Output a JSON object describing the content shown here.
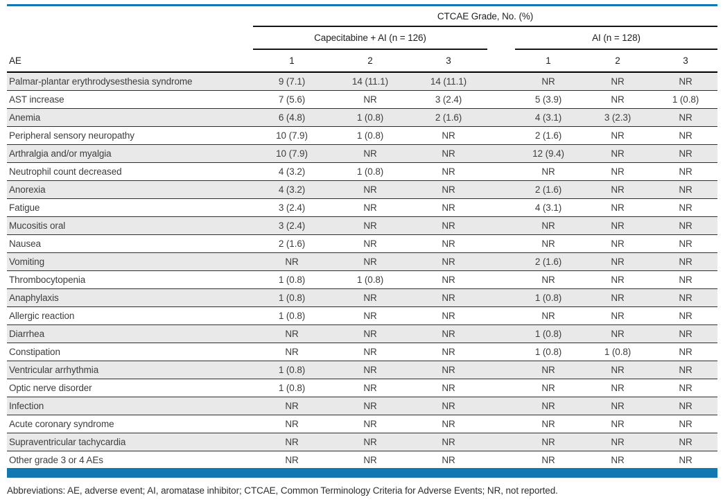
{
  "colors": {
    "accent_blue": "#1178B2",
    "row_stripe": "#e9e9e9",
    "rule_dark": "#141414"
  },
  "table": {
    "header": {
      "grade_header": "CTCAE Grade, No. (%)",
      "group1": "Capecitabine + AI (n = 126)",
      "group2": "AI (n = 128)",
      "ae_label": "AE",
      "grade_cols": [
        "1",
        "2",
        "3",
        "1",
        "2",
        "3"
      ]
    },
    "rows": [
      {
        "ae": "Palmar-plantar erythrodysesthesia syndrome",
        "values": [
          "9 (7.1)",
          "14 (11.1)",
          "14 (11.1)",
          "NR",
          "NR",
          "NR"
        ]
      },
      {
        "ae": "AST increase",
        "values": [
          "7 (5.6)",
          "NR",
          "3 (2.4)",
          "5 (3.9)",
          "NR",
          "1 (0.8)"
        ]
      },
      {
        "ae": "Anemia",
        "values": [
          "6 (4.8)",
          "1 (0.8)",
          "2 (1.6)",
          "4 (3.1)",
          "3 (2.3)",
          "NR"
        ]
      },
      {
        "ae": "Peripheral sensory neuropathy",
        "values": [
          "10 (7.9)",
          "1 (0.8)",
          "NR",
          "2 (1.6)",
          "NR",
          "NR"
        ]
      },
      {
        "ae": "Arthralgia and/or myalgia",
        "values": [
          "10 (7.9)",
          "NR",
          "NR",
          "12 (9.4)",
          "NR",
          "NR"
        ]
      },
      {
        "ae": "Neutrophil count decreased",
        "values": [
          "4 (3.2)",
          "1 (0.8)",
          "NR",
          "NR",
          "NR",
          "NR"
        ]
      },
      {
        "ae": "Anorexia",
        "values": [
          "4 (3.2)",
          "NR",
          "NR",
          "2 (1.6)",
          "NR",
          "NR"
        ]
      },
      {
        "ae": "Fatigue",
        "values": [
          "3 (2.4)",
          "NR",
          "NR",
          "4 (3.1)",
          "NR",
          "NR"
        ]
      },
      {
        "ae": "Mucositis oral",
        "values": [
          "3 (2.4)",
          "NR",
          "NR",
          "NR",
          "NR",
          "NR"
        ]
      },
      {
        "ae": "Nausea",
        "values": [
          "2 (1.6)",
          "NR",
          "NR",
          "NR",
          "NR",
          "NR"
        ]
      },
      {
        "ae": "Vomiting",
        "values": [
          "NR",
          "NR",
          "NR",
          "2 (1.6)",
          "NR",
          "NR"
        ]
      },
      {
        "ae": "Thrombocytopenia",
        "values": [
          "1 (0.8)",
          "1 (0.8)",
          "NR",
          "NR",
          "NR",
          "NR"
        ]
      },
      {
        "ae": "Anaphylaxis",
        "values": [
          "1 (0.8)",
          "NR",
          "NR",
          "1 (0.8)",
          "NR",
          "NR"
        ]
      },
      {
        "ae": "Allergic reaction",
        "values": [
          "1 (0.8)",
          "NR",
          "NR",
          "NR",
          "NR",
          "NR"
        ]
      },
      {
        "ae": "Diarrhea",
        "values": [
          "NR",
          "NR",
          "NR",
          "1 (0.8)",
          "NR",
          "NR"
        ]
      },
      {
        "ae": "Constipation",
        "values": [
          "NR",
          "NR",
          "NR",
          "1 (0.8)",
          "1 (0.8)",
          "NR"
        ]
      },
      {
        "ae": "Ventricular arrhythmia",
        "values": [
          "1 (0.8)",
          "NR",
          "NR",
          "NR",
          "NR",
          "NR"
        ]
      },
      {
        "ae": "Optic nerve disorder",
        "values": [
          "1 (0.8)",
          "NR",
          "NR",
          "NR",
          "NR",
          "NR"
        ]
      },
      {
        "ae": "Infection",
        "values": [
          "NR",
          "NR",
          "NR",
          "NR",
          "NR",
          "NR"
        ]
      },
      {
        "ae": "Acute coronary syndrome",
        "values": [
          "NR",
          "NR",
          "NR",
          "NR",
          "NR",
          "NR"
        ]
      },
      {
        "ae": "Supraventricular tachycardia",
        "values": [
          "NR",
          "NR",
          "NR",
          "NR",
          "NR",
          "NR"
        ]
      },
      {
        "ae": "Other grade 3 or 4 AEs",
        "values": [
          "NR",
          "NR",
          "NR",
          "NR",
          "NR",
          "NR"
        ]
      }
    ]
  },
  "footer": {
    "abbreviations": "Abbreviations: AE, adverse event; AI, aromatase inhibitor; CTCAE, Common Terminology Criteria for Adverse Events; NR, not reported."
  }
}
